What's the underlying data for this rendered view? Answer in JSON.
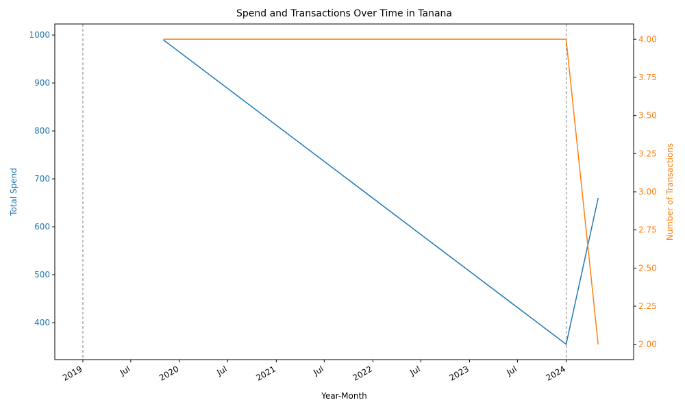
{
  "chart_data": {
    "type": "line",
    "title": "Spend and Transactions Over Time in Tanana",
    "xlabel": "Year-Month",
    "y_left_label": "Total Spend",
    "y_right_label": "Number of Transactions",
    "colors": {
      "spend": "#1f77b4",
      "transactions": "#ff7f0e",
      "vline": "#808080"
    },
    "x_ticks": [
      {
        "date": "2019-01-01",
        "label": "2019"
      },
      {
        "date": "2019-07-01",
        "label": "Jul"
      },
      {
        "date": "2020-01-01",
        "label": "2020"
      },
      {
        "date": "2020-07-01",
        "label": "Jul"
      },
      {
        "date": "2021-01-01",
        "label": "2021"
      },
      {
        "date": "2021-07-01",
        "label": "Jul"
      },
      {
        "date": "2022-01-01",
        "label": "2022"
      },
      {
        "date": "2022-07-01",
        "label": "Jul"
      },
      {
        "date": "2023-01-01",
        "label": "2023"
      },
      {
        "date": "2023-07-01",
        "label": "Jul"
      },
      {
        "date": "2024-01-01",
        "label": "2024"
      }
    ],
    "x_range": [
      "2018-09-17",
      "2024-09-12"
    ],
    "y_left_range": [
      323,
      1023
    ],
    "y_left_ticks": [
      "400",
      "500",
      "600",
      "700",
      "800",
      "900",
      "1000"
    ],
    "y_right_range": [
      1.9,
      4.1
    ],
    "y_right_ticks": [
      "2.00",
      "2.25",
      "2.50",
      "2.75",
      "3.00",
      "3.25",
      "3.50",
      "3.75",
      "4.00"
    ],
    "vlines": [
      "2019-01-01",
      "2024-01-01"
    ],
    "series": [
      {
        "name": "Total Spend",
        "axis": "left",
        "x": [
          "2019-11-01",
          "2024-01-01",
          "2024-05-01"
        ],
        "y": [
          990,
          355,
          660
        ]
      },
      {
        "name": "Number of Transactions",
        "axis": "right",
        "x": [
          "2019-11-01",
          "2024-01-01",
          "2024-05-01"
        ],
        "y": [
          4,
          4,
          2
        ]
      }
    ]
  }
}
